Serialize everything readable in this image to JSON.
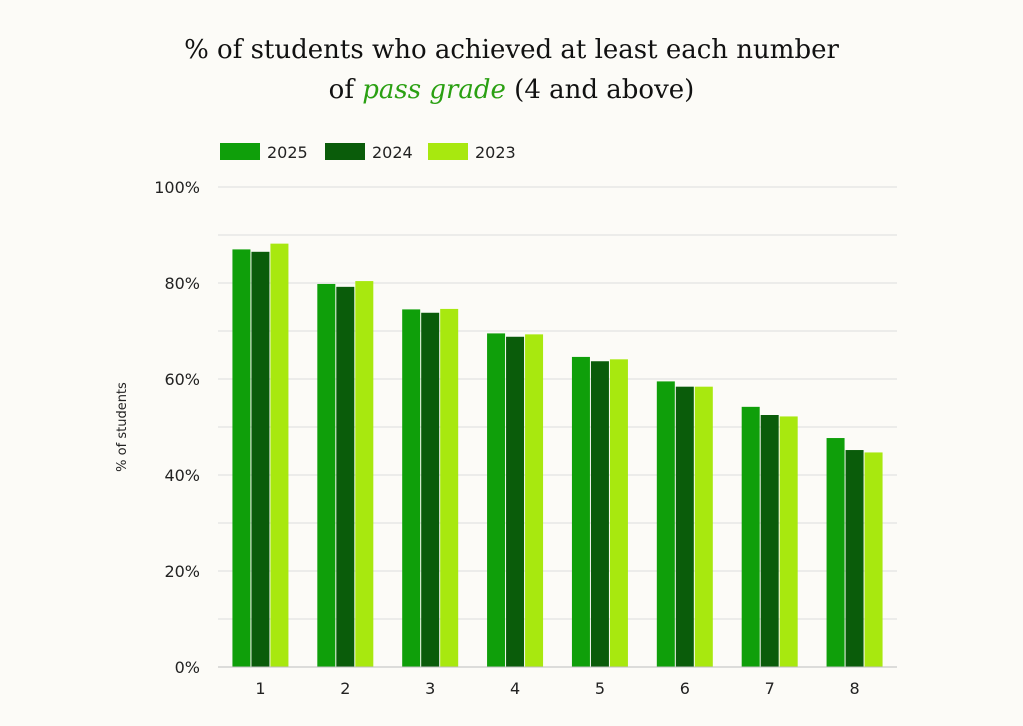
{
  "header": {
    "title_line1": "% of students who achieved at least each number",
    "title_line2_prefix": "of ",
    "title_line2_highlight": "pass grade",
    "title_line2_suffix": " (4 and above)"
  },
  "chart_data": {
    "type": "bar",
    "title": "% of students who achieved at least each number of pass grade (4 and above)",
    "xlabel": "",
    "ylabel": "% of students",
    "categories": [
      "1",
      "2",
      "3",
      "4",
      "5",
      "6",
      "7",
      "8"
    ],
    "series": [
      {
        "name": "2025",
        "color": "#0f9f0a",
        "values": [
          87.0,
          79.8,
          74.5,
          69.5,
          64.6,
          59.5,
          54.2,
          47.7
        ]
      },
      {
        "name": "2024",
        "color": "#0a5c0a",
        "values": [
          86.5,
          79.2,
          73.8,
          68.8,
          63.7,
          58.4,
          52.5,
          45.2
        ]
      },
      {
        "name": "2023",
        "color": "#a8e80f",
        "values": [
          88.2,
          80.4,
          74.6,
          69.3,
          64.1,
          58.4,
          52.2,
          44.7
        ]
      }
    ],
    "ylim": [
      0,
      100
    ],
    "yticks": [
      0,
      20,
      40,
      60,
      80,
      100
    ],
    "ytick_labels": [
      "0%",
      "20%",
      "40%",
      "60%",
      "80%",
      "100%"
    ],
    "grid": true,
    "legend_position": "top-left"
  }
}
